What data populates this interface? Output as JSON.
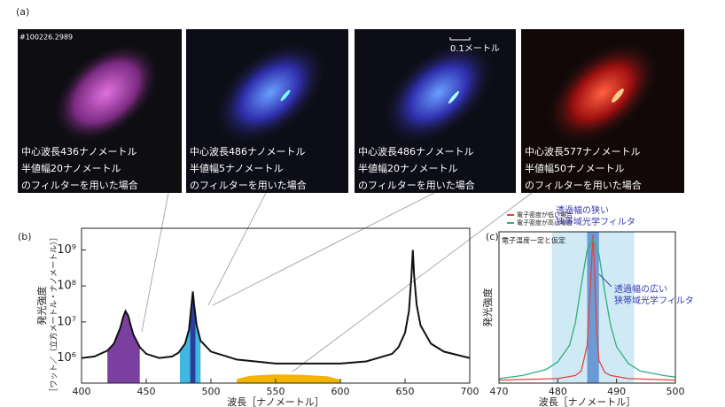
{
  "panel_a": {
    "label": "(a)",
    "shot_id": "#100226.2989",
    "scale": "0.1メートル",
    "images": [
      {
        "captions": [
          "中心波長436ナノメートル",
          "半値幅20ナノメートル",
          "のフィルターを用いた場合"
        ]
      },
      {
        "captions": [
          "中心波長486ナノメートル",
          "半値幅5ナノメートル",
          "のフィルターを用いた場合"
        ]
      },
      {
        "captions": [
          "中心波長486ナノメートル",
          "半値幅20ナノメートル",
          "のフィルターを用いた場合"
        ]
      },
      {
        "captions": [
          "中心波長577ナノメートル",
          "半値幅50ナノメートル",
          "のフィルターを用いた場合"
        ]
      }
    ]
  },
  "chart_data": [
    {
      "type": "line",
      "panel": "(b)",
      "ylabel": "発光強度",
      "ylabel_unit": "［ワット／（立方メートル・ナノメートル）］",
      "xlabel": "波長［ナノメートル］",
      "xlim": [
        400,
        700
      ],
      "xticks": [
        400,
        450,
        500,
        550,
        600,
        650,
        700
      ],
      "ylim": [
        200000,
        4000000000
      ],
      "ylog": true,
      "yticks": [
        {
          "value": 1000000,
          "label": "10⁶"
        },
        {
          "value": 10000000,
          "label": "10⁷"
        },
        {
          "value": 100000000,
          "label": "10⁸"
        },
        {
          "value": 1000000000,
          "label": "10⁹"
        }
      ],
      "series": [
        {
          "color": "#7b3fa0",
          "fill": true,
          "x": [
            420,
            425,
            430,
            432,
            434,
            436,
            438,
            440,
            445
          ],
          "values": [
            1600000,
            2500000,
            7000000,
            13000000,
            20000000,
            15000000,
            8000000,
            4500000,
            2000000
          ]
        },
        {
          "color": "#3fb8e0",
          "fill": true,
          "x": [
            476,
            480,
            483,
            485,
            486,
            487,
            489,
            492
          ],
          "values": [
            1400000,
            2500000,
            6000000,
            30000000,
            70000000,
            30000000,
            8000000,
            3000000
          ]
        },
        {
          "color": "#2a3f9c",
          "fill": true,
          "x": [
            484,
            485,
            486,
            487,
            488
          ],
          "values": [
            12000000,
            30000000,
            70000000,
            30000000,
            12000000
          ]
        },
        {
          "color": "#f2b400",
          "fill": true,
          "x": [
            520,
            530,
            550,
            570,
            590,
            600
          ],
          "values": [
            260000,
            320000,
            350000,
            340000,
            310000,
            250000
          ]
        },
        {
          "color": "#111111",
          "x": [
            400,
            410,
            420,
            425,
            430,
            432,
            434,
            436,
            438,
            440,
            445,
            450,
            460,
            470,
            475,
            480,
            483,
            485,
            486,
            487,
            489,
            492,
            500,
            520,
            550,
            580,
            600,
            620,
            640,
            645,
            650,
            653,
            655,
            656,
            657,
            659,
            662,
            670,
            680,
            700
          ],
          "values": [
            1000000,
            1100000,
            1600000,
            2500000,
            7000000,
            13000000,
            20000000,
            15000000,
            8000000,
            4500000,
            2000000,
            1300000,
            1000000,
            1100000,
            1400000,
            2500000,
            6000000,
            30000000,
            70000000,
            30000000,
            8000000,
            3000000,
            1500000,
            900000,
            700000,
            700000,
            700000,
            800000,
            1300000,
            2000000,
            5000000,
            20000000,
            200000000,
            1000000000,
            200000000,
            30000000,
            8000000,
            2500000,
            1500000,
            1000000
          ]
        }
      ]
    },
    {
      "type": "line",
      "panel": "(c)",
      "ylabel": "発光強度",
      "xlabel": "波長［ナノメートル］",
      "xlim": [
        470,
        500
      ],
      "xticks": [
        470,
        480,
        490,
        500
      ],
      "ylim": [
        0,
        1
      ],
      "bands": [
        {
          "x": [
            479,
            493
          ],
          "color": "#cfe9f5"
        },
        {
          "x": [
            485,
            487
          ],
          "color": "#6b9bd6"
        }
      ],
      "series": [
        {
          "name": "電子密度が低い場合",
          "color": "#e8413c",
          "x": [
            470,
            480,
            483,
            484,
            485,
            485.5,
            486,
            486.3,
            486.6,
            487,
            488,
            489,
            492,
            500
          ],
          "values": [
            0.02,
            0.03,
            0.05,
            0.08,
            0.25,
            0.6,
            0.98,
            0.7,
            0.35,
            0.15,
            0.07,
            0.05,
            0.03,
            0.02
          ]
        },
        {
          "name": "電子密度が高い場合",
          "color": "#2fb07a",
          "x": [
            470,
            474,
            478,
            480,
            482,
            483,
            484,
            485,
            486,
            487,
            488,
            489,
            490,
            492,
            494,
            498,
            500
          ],
          "values": [
            0.03,
            0.05,
            0.09,
            0.14,
            0.25,
            0.4,
            0.65,
            0.88,
            0.95,
            0.85,
            0.6,
            0.38,
            0.24,
            0.13,
            0.08,
            0.05,
            0.04
          ]
        }
      ],
      "annotations": [
        "電子温度一定と仮定",
        "透過幅の狭い",
        "狭帯域光学フィルタ",
        "透過幅の広い",
        "狭帯域光学フィルタ"
      ]
    }
  ]
}
